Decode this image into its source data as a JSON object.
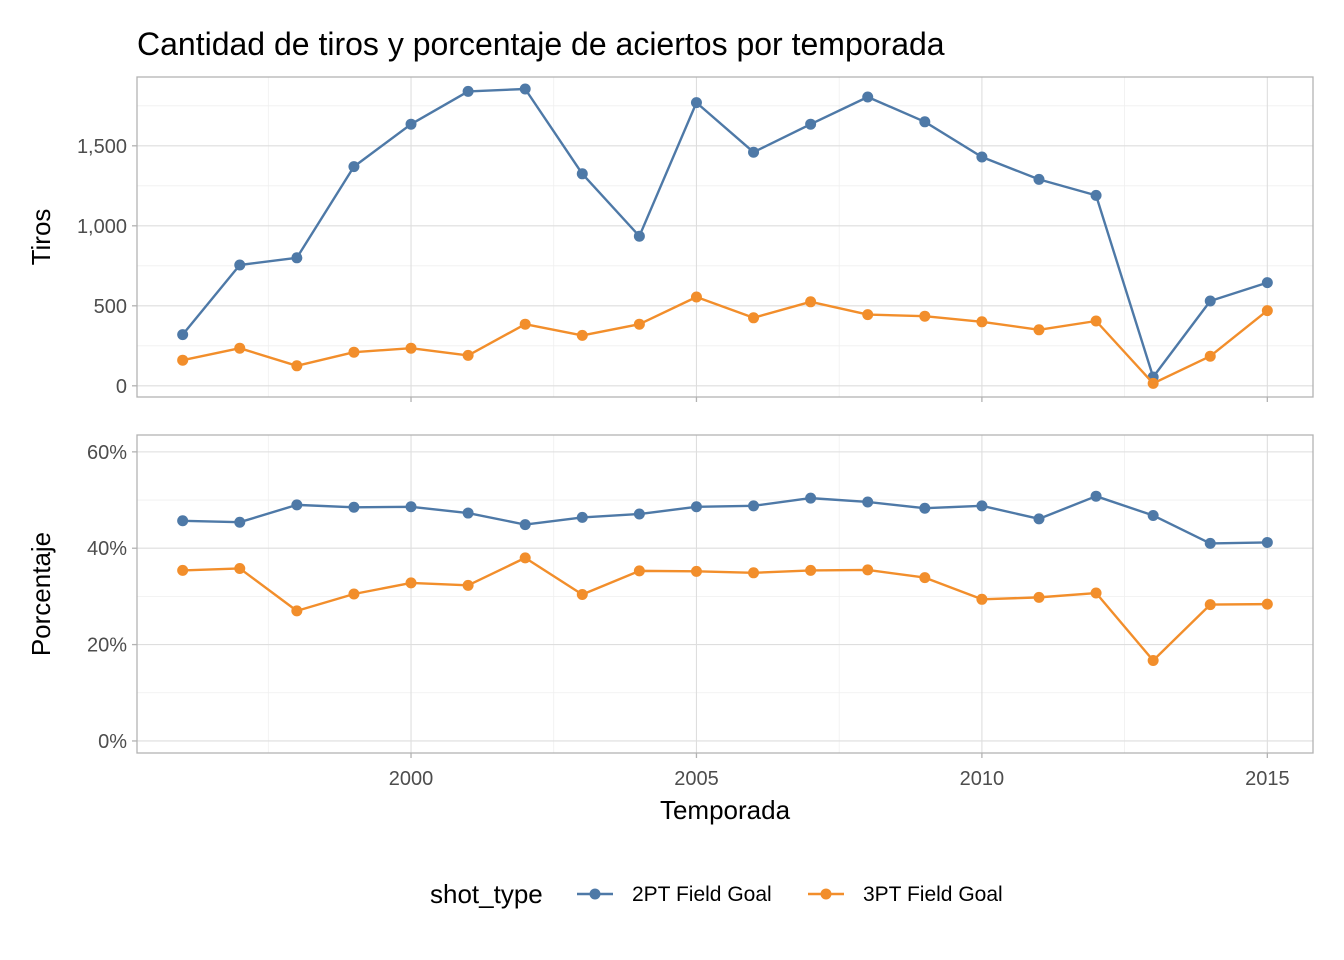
{
  "chart_data": {
    "type": "line",
    "title": "Cantidad de tiros y porcentaje de aciertos por temporada",
    "xlabel": "Temporada",
    "x": [
      1996,
      1997,
      1998,
      1999,
      2000,
      2001,
      2002,
      2003,
      2004,
      2005,
      2006,
      2007,
      2008,
      2009,
      2010,
      2011,
      2012,
      2013,
      2014,
      2015
    ],
    "x_ticks": [
      2000,
      2005,
      2010,
      2015
    ],
    "x_tick_labels": [
      "2000",
      "2005",
      "2010",
      "2015"
    ],
    "xlim": [
      1995.2,
      2015.8
    ],
    "legend": {
      "title": "shot_type",
      "position": "bottom",
      "entries": [
        "2PT Field Goal",
        "3PT Field Goal"
      ]
    },
    "colors": {
      "2PT Field Goal": "#4e79a7",
      "3PT Field Goal": "#f28e2b"
    },
    "grid": true,
    "panels": [
      {
        "ylabel": "Tiros",
        "ylim": [
          -70,
          1930
        ],
        "y_ticks": [
          0,
          500,
          1000,
          1500
        ],
        "y_tick_labels": [
          "0",
          "500",
          "1,000",
          "1,500"
        ],
        "series": [
          {
            "name": "2PT Field Goal",
            "values": [
              320,
              755,
              800,
              1370,
              1635,
              1840,
              1855,
              1325,
              935,
              1770,
              1460,
              1635,
              1805,
              1650,
              1430,
              1290,
              1190,
              55,
              530,
              645
            ]
          },
          {
            "name": "3PT Field Goal",
            "values": [
              160,
              235,
              125,
              210,
              235,
              190,
              385,
              315,
              385,
              555,
              425,
              525,
              445,
              435,
              400,
              350,
              405,
              15,
              185,
              470
            ]
          }
        ]
      },
      {
        "ylabel": "Porcentaje",
        "ylim": [
          -2.5,
          63.5
        ],
        "y_ticks": [
          0,
          20,
          40,
          60
        ],
        "y_tick_labels": [
          "0%",
          "20%",
          "40%",
          "60%"
        ],
        "series": [
          {
            "name": "2PT Field Goal",
            "values": [
              45.7,
              45.4,
              49.0,
              48.5,
              48.6,
              47.3,
              44.9,
              46.4,
              47.1,
              48.6,
              48.8,
              50.4,
              49.6,
              48.3,
              48.8,
              46.1,
              50.8,
              46.8,
              41.0,
              41.2
            ]
          },
          {
            "name": "3PT Field Goal",
            "values": [
              35.4,
              35.8,
              27.0,
              30.5,
              32.8,
              32.3,
              38.0,
              30.4,
              35.3,
              35.2,
              34.9,
              35.4,
              35.5,
              33.9,
              29.4,
              29.8,
              30.7,
              16.7,
              28.3,
              28.4
            ]
          }
        ]
      }
    ]
  }
}
